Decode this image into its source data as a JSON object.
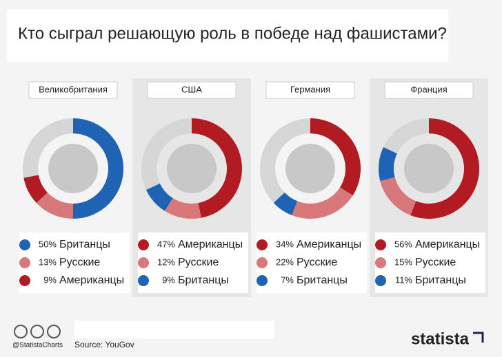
{
  "title": "Кто сыграл решающую роль в победе над фашистами?",
  "chart_data": [
    {
      "type": "donut",
      "title": "Великобритания",
      "categories": [
        "Британцы",
        "Русские",
        "Американцы"
      ],
      "values": [
        50,
        13,
        9
      ],
      "value_labels": [
        "50%",
        "13%",
        "9%"
      ],
      "colors": [
        "#1f63b5",
        "#d9787a",
        "#b31b22"
      ],
      "shaded": false
    },
    {
      "type": "donut",
      "title": "США",
      "categories": [
        "Американцы",
        "Русские",
        "Британцы"
      ],
      "values": [
        47,
        12,
        9
      ],
      "value_labels": [
        "47%",
        "12%",
        "9%"
      ],
      "colors": [
        "#b31b22",
        "#d9787a",
        "#1f63b5"
      ],
      "shaded": true
    },
    {
      "type": "donut",
      "title": "Германия",
      "categories": [
        "Американцы",
        "Русские",
        "Британцы"
      ],
      "values": [
        34,
        22,
        7
      ],
      "value_labels": [
        "34%",
        "22%",
        "7%"
      ],
      "colors": [
        "#b31b22",
        "#d9787a",
        "#1f63b5"
      ],
      "shaded": false
    },
    {
      "type": "donut",
      "title": "Франция",
      "categories": [
        "Американцы",
        "Русские",
        "Британцы"
      ],
      "values": [
        56,
        15,
        11
      ],
      "value_labels": [
        "56%",
        "15%",
        "11%"
      ],
      "colors": [
        "#b31b22",
        "#d9787a",
        "#1f63b5"
      ],
      "shaded": true
    }
  ],
  "footer": {
    "credit": "@StatistaCharts",
    "source": "Source: YouGov",
    "brand": "statista"
  }
}
